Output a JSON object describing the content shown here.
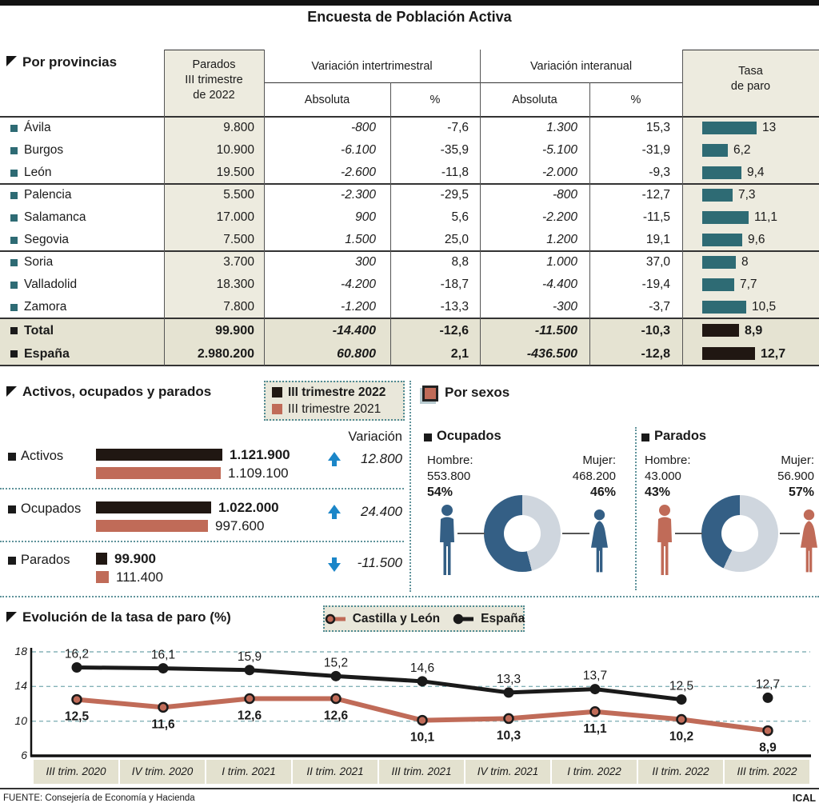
{
  "title": "Encuesta de Población Activa",
  "footer": {
    "source": "FUENTE: Consejería de Economía y Hacienda",
    "credit": "ICAL"
  },
  "colors": {
    "teal_bar": "#2e6b74",
    "salmon": "#c06b58",
    "near_black": "#201712",
    "donut_dark": "#345f85",
    "donut_light": "#cfd6de",
    "arrow_blue": "#1b86c8",
    "beige_column": "#edebdf",
    "beige_rows": "#e5e3d2"
  },
  "table": {
    "section_title": "Por provincias",
    "headers": {
      "unemployed_lines": [
        "Parados",
        "III trimestre",
        "de 2022"
      ],
      "var_quarter": "Variación intertrimestral",
      "var_year": "Variación interanual",
      "absolute": "Absoluta",
      "percent": "%",
      "rate_lines": [
        "Tasa",
        "de paro"
      ]
    },
    "rows": [
      {
        "name": "Ávila",
        "unemployed": "9.800",
        "q_abs": "-800",
        "q_pct": "-7,6",
        "y_abs": "1.300",
        "y_pct": "15,3",
        "rate": "13",
        "rate_value": 13
      },
      {
        "name": "Burgos",
        "unemployed": "10.900",
        "q_abs": "-6.100",
        "q_pct": "-35,9",
        "y_abs": "-5.100",
        "y_pct": "-31,9",
        "rate": "6,2",
        "rate_value": 6.2
      },
      {
        "name": "León",
        "unemployed": "19.500",
        "q_abs": "-2.600",
        "q_pct": "-11,8",
        "y_abs": "-2.000",
        "y_pct": "-9,3",
        "rate": "9,4",
        "rate_value": 9.4
      },
      {
        "name": "Palencia",
        "unemployed": "5.500",
        "q_abs": "-2.300",
        "q_pct": "-29,5",
        "y_abs": "-800",
        "y_pct": "-12,7",
        "rate": "7,3",
        "rate_value": 7.3
      },
      {
        "name": "Salamanca",
        "unemployed": "17.000",
        "q_abs": "900",
        "q_pct": "5,6",
        "y_abs": "-2.200",
        "y_pct": "-11,5",
        "rate": "11,1",
        "rate_value": 11.1
      },
      {
        "name": "Segovia",
        "unemployed": "7.500",
        "q_abs": "1.500",
        "q_pct": "25,0",
        "y_abs": "1.200",
        "y_pct": "19,1",
        "rate": "9,6",
        "rate_value": 9.6
      },
      {
        "name": "Soria",
        "unemployed": "3.700",
        "q_abs": "300",
        "q_pct": "8,8",
        "y_abs": "1.000",
        "y_pct": "37,0",
        "rate": "8",
        "rate_value": 8
      },
      {
        "name": "Valladolid",
        "unemployed": "18.300",
        "q_abs": "-4.200",
        "q_pct": "-18,7",
        "y_abs": "-4.400",
        "y_pct": "-19,4",
        "rate": "7,7",
        "rate_value": 7.7
      },
      {
        "name": "Zamora",
        "unemployed": "7.800",
        "q_abs": "-1.200",
        "q_pct": "-13,3",
        "y_abs": "-300",
        "y_pct": "-3,7",
        "rate": "10,5",
        "rate_value": 10.5
      }
    ],
    "totals": [
      {
        "name": "Total",
        "unemployed": "99.900",
        "q_abs": "-14.400",
        "q_pct": "-12,6",
        "y_abs": "-11.500",
        "y_pct": "-10,3",
        "rate": "8,9",
        "rate_value": 8.9
      },
      {
        "name": "España",
        "unemployed": "2.980.200",
        "q_abs": "60.800",
        "q_pct": "2,1",
        "y_abs": "-436.500",
        "y_pct": "-12,8",
        "rate": "12,7",
        "rate_value": 12.7
      }
    ]
  },
  "bars": {
    "section_title": "Activos, ocupados y parados",
    "legend": [
      {
        "label": "III trimestre 2022",
        "color": "#201712",
        "bold": true
      },
      {
        "label": "III trimestre 2021",
        "color": "#c06b58",
        "bold": false
      }
    ],
    "variation_label": "Variación",
    "max_value": 1121900,
    "rows": [
      {
        "label": "Activos",
        "v2022": 1121900,
        "v2022_text": "1.121.900",
        "v2021": 1109100,
        "v2021_text": "1.109.100",
        "variation_text": "12.800",
        "direction": "up"
      },
      {
        "label": "Ocupados",
        "v2022": 1022000,
        "v2022_text": "1.022.000",
        "v2021": 997600,
        "v2021_text": "997.600",
        "variation_text": "24.400",
        "direction": "up"
      },
      {
        "label": "Parados",
        "v2022": 99900,
        "v2022_text": "99.900",
        "v2021": 111400,
        "v2021_text": "111.400",
        "variation_text": "-11.500",
        "direction": "down"
      }
    ]
  },
  "sexes": {
    "section_title": "Por sexos",
    "groups": [
      {
        "title": "Ocupados",
        "male_label": "Hombre:",
        "male_value": "553.800",
        "male_pct": "54%",
        "male_pct_num": 54,
        "female_label": "Mujer:",
        "female_value": "468.200",
        "female_pct": "46%",
        "female_pct_num": 46,
        "figure_color": "#345f85"
      },
      {
        "title": "Parados",
        "male_label": "Hombre:",
        "male_value": "43.000",
        "male_pct": "43%",
        "male_pct_num": 43,
        "female_label": "Mujer:",
        "female_value": "56.900",
        "female_pct": "57%",
        "female_pct_num": 57,
        "figure_color": "#c06b58"
      }
    ]
  },
  "evolution": {
    "section_title": "Evolución de la tasa de paro (%)",
    "legend": [
      {
        "name": "Castilla y León"
      },
      {
        "name": "España"
      }
    ],
    "yticks": [
      "18",
      "14",
      "10",
      "6"
    ],
    "x_labels": [
      "III trim. 2020",
      "IV trim. 2020",
      "I trim. 2021",
      "II trim. 2021",
      "III trim. 2021",
      "IV trim. 2021",
      "I trim. 2022",
      "II trim. 2022",
      "III trim. 2022"
    ],
    "cyl_values": [
      12.5,
      11.6,
      12.6,
      12.6,
      10.1,
      10.3,
      11.1,
      10.2,
      8.9
    ],
    "cyl_text": [
      "12,5",
      "11,6",
      "12,6",
      "12,6",
      "10,1",
      "10,3",
      "11,1",
      "10,2",
      "8,9"
    ],
    "esp_values": [
      16.2,
      16.1,
      15.9,
      15.2,
      14.6,
      13.3,
      13.7,
      12.5,
      12.7
    ],
    "esp_text": [
      "16,2",
      "16,1",
      "15,9",
      "15,2",
      "14,6",
      "13,3",
      "13,7",
      "12,5",
      "12,7"
    ],
    "esp_connected_points": 8,
    "ymin": 6,
    "ymax": 18
  },
  "chart_data": [
    {
      "type": "table",
      "title": "Por provincias",
      "columns": [
        "Provincia",
        "Parados III trimestre de 2022",
        "Variación intertrimestral Absoluta",
        "Variación intertrimestral %",
        "Variación interanual Absoluta",
        "Variación interanual %",
        "Tasa de paro"
      ],
      "rows": [
        [
          "Ávila",
          9800,
          -800,
          -7.6,
          1300,
          15.3,
          13
        ],
        [
          "Burgos",
          10900,
          -6100,
          -35.9,
          -5100,
          -31.9,
          6.2
        ],
        [
          "León",
          19500,
          -2600,
          -11.8,
          -2000,
          -9.3,
          9.4
        ],
        [
          "Palencia",
          5500,
          -2300,
          -29.5,
          -800,
          -12.7,
          7.3
        ],
        [
          "Salamanca",
          17000,
          900,
          5.6,
          -2200,
          -11.5,
          11.1
        ],
        [
          "Segovia",
          7500,
          1500,
          25.0,
          1200,
          19.1,
          9.6
        ],
        [
          "Soria",
          3700,
          300,
          8.8,
          1000,
          37.0,
          8
        ],
        [
          "Valladolid",
          18300,
          -4200,
          -18.7,
          -4400,
          -19.4,
          7.7
        ],
        [
          "Zamora",
          7800,
          -1200,
          -13.3,
          -300,
          -3.7,
          10.5
        ],
        [
          "Total",
          99900,
          -14400,
          -12.6,
          -11500,
          -10.3,
          8.9
        ],
        [
          "España",
          2980200,
          60800,
          2.1,
          -436500,
          -12.8,
          12.7
        ]
      ]
    },
    {
      "type": "bar",
      "title": "Activos, ocupados y parados",
      "categories": [
        "Activos",
        "Ocupados",
        "Parados"
      ],
      "series": [
        {
          "name": "III trimestre 2022",
          "values": [
            1121900,
            1022000,
            99900
          ]
        },
        {
          "name": "III trimestre 2021",
          "values": [
            1109100,
            997600,
            111400
          ]
        }
      ],
      "variation": [
        12800,
        24400,
        -11500
      ]
    },
    {
      "type": "pie",
      "title": "Por sexos — Ocupados",
      "categories": [
        "Hombre",
        "Mujer"
      ],
      "values": [
        553800,
        468200
      ],
      "percents": [
        54,
        46
      ]
    },
    {
      "type": "pie",
      "title": "Por sexos — Parados",
      "categories": [
        "Hombre",
        "Mujer"
      ],
      "values": [
        43000,
        56900
      ],
      "percents": [
        43,
        57
      ]
    },
    {
      "type": "line",
      "title": "Evolución de la tasa de paro (%)",
      "x": [
        "III trim. 2020",
        "IV trim. 2020",
        "I trim. 2021",
        "II trim. 2021",
        "III trim. 2021",
        "IV trim. 2021",
        "I trim. 2022",
        "II trim. 2022",
        "III trim. 2022"
      ],
      "series": [
        {
          "name": "Castilla y León",
          "values": [
            12.5,
            11.6,
            12.6,
            12.6,
            10.1,
            10.3,
            11.1,
            10.2,
            8.9
          ]
        },
        {
          "name": "España",
          "values": [
            16.2,
            16.1,
            15.9,
            15.2,
            14.6,
            13.3,
            13.7,
            12.5,
            12.7
          ]
        }
      ],
      "ylim": [
        6,
        18
      ],
      "yticks": [
        18,
        14,
        10,
        6
      ],
      "grid": true,
      "legend_position": "top"
    }
  ]
}
